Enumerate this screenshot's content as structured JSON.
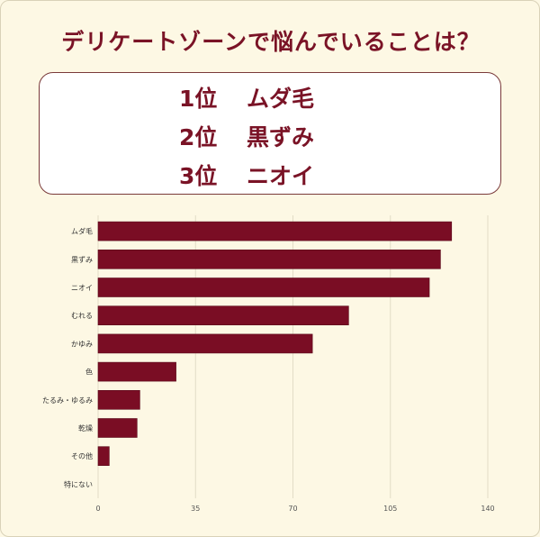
{
  "title": "デリケートゾーンで悩んでいることは？",
  "ranking": [
    {
      "rank": "1位",
      "item": "ムダ毛"
    },
    {
      "rank": "2位",
      "item": "黒ずみ"
    },
    {
      "rank": "3位",
      "item": "ニオイ"
    }
  ],
  "colors": {
    "bar": "#7a0d24",
    "accent": "#7a1326",
    "background": "#fdf8e4"
  },
  "chart_data": {
    "type": "bar",
    "orientation": "horizontal",
    "categories": [
      "ムダ毛",
      "黒ずみ",
      "ニオイ",
      "むれる",
      "かゆみ",
      "色",
      "たるみ・ゆるみ",
      "乾燥",
      "その他",
      "特にない"
    ],
    "values": [
      127,
      123,
      119,
      90,
      77,
      28,
      15,
      14,
      4,
      0
    ],
    "xlim": [
      0,
      140
    ],
    "xticks": [
      0,
      35,
      70,
      105,
      140
    ],
    "grid": true,
    "title": "",
    "xlabel": "",
    "ylabel": ""
  }
}
